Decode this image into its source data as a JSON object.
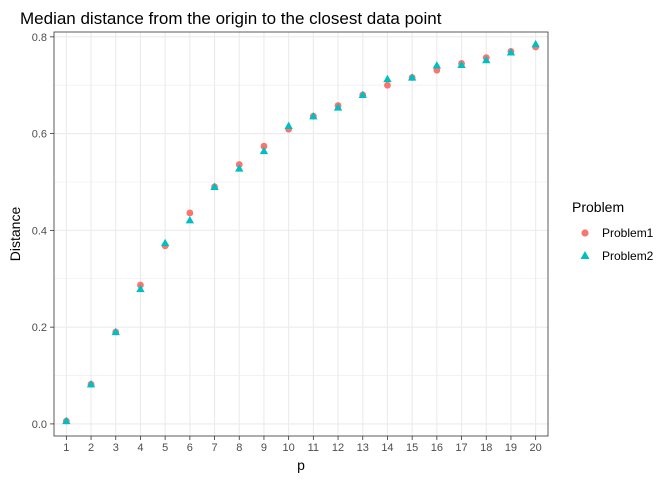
{
  "chart_data": {
    "type": "scatter",
    "title": "Median distance from the origin to the closest data point",
    "xlabel": "p",
    "ylabel": "Distance",
    "x": [
      1,
      2,
      3,
      4,
      5,
      6,
      7,
      8,
      9,
      10,
      11,
      12,
      13,
      14,
      15,
      16,
      17,
      18,
      19,
      20
    ],
    "xlim": [
      0.5,
      20.5
    ],
    "ylim": [
      -0.025,
      0.81
    ],
    "yticks": [
      "0.0",
      "0.2",
      "0.4",
      "0.6",
      "0.8"
    ],
    "ytick_values": [
      0.0,
      0.2,
      0.4,
      0.6,
      0.8
    ],
    "grid": true,
    "legend": {
      "title": "Problem",
      "position": "right"
    },
    "series": [
      {
        "name": "Problem1",
        "marker": "circle",
        "color": "#F8766D",
        "values": [
          0.006,
          0.082,
          0.19,
          0.287,
          0.368,
          0.436,
          0.49,
          0.536,
          0.574,
          0.609,
          0.636,
          0.658,
          0.68,
          0.7,
          0.716,
          0.731,
          0.745,
          0.757,
          0.77,
          0.779
        ]
      },
      {
        "name": "Problem2",
        "marker": "triangle",
        "color": "#00BFC4",
        "values": [
          0.006,
          0.082,
          0.19,
          0.279,
          0.374,
          0.421,
          0.49,
          0.528,
          0.564,
          0.616,
          0.636,
          0.654,
          0.68,
          0.713,
          0.716,
          0.741,
          0.742,
          0.752,
          0.768,
          0.785
        ]
      }
    ]
  }
}
